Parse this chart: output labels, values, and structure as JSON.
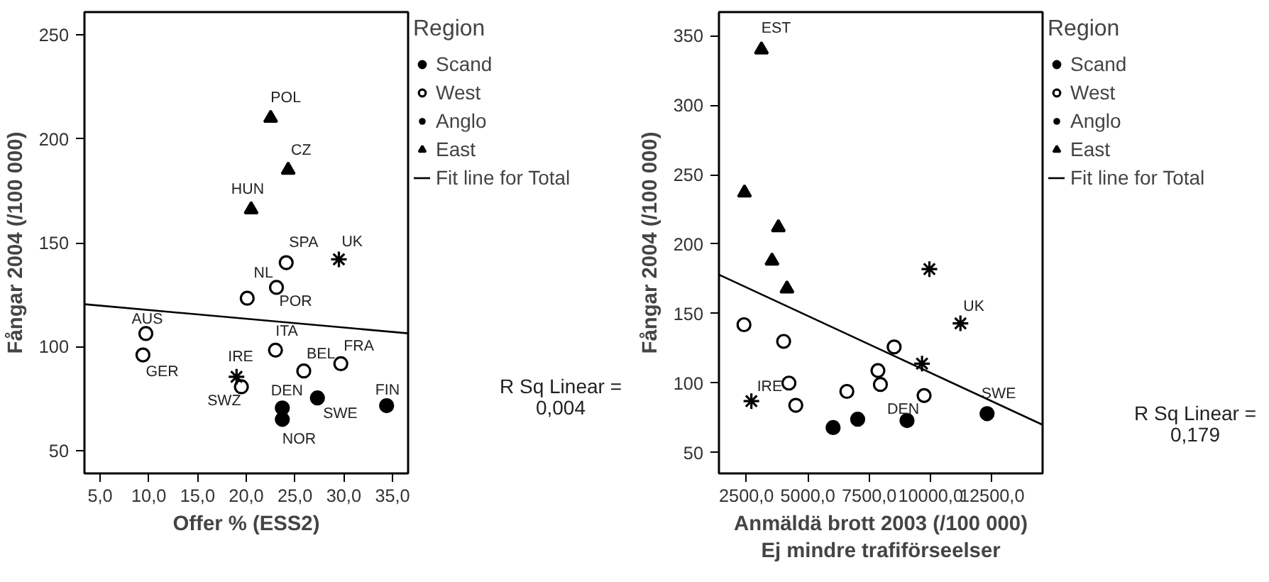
{
  "chart_data": [
    {
      "type": "scatter",
      "xlabel": "Offer % (ESS2)",
      "ylabel": "Fångar 2004 (/100 000)",
      "legend_title": "Region",
      "legend": "right",
      "xlim": [
        3.4,
        36.6
      ],
      "ylim": [
        39,
        261
      ],
      "xticks": [
        {
          "value": 5,
          "label": "5,0"
        },
        {
          "value": 10,
          "label": "10,0"
        },
        {
          "value": 15,
          "label": "15,0"
        },
        {
          "value": 20,
          "label": "20,0"
        },
        {
          "value": 25,
          "label": "25,0"
        },
        {
          "value": 30,
          "label": "30,0"
        },
        {
          "value": 35,
          "label": "35,0"
        }
      ],
      "yticks": [
        50,
        100,
        150,
        200,
        250
      ],
      "grid": false,
      "series": [
        {
          "name": "Scand",
          "color": "#000000",
          "marker": "circle",
          "x": [
            23.7,
            23.7,
            27.3,
            34.4
          ],
          "values": [
            70.5,
            65,
            75.3,
            71.6
          ]
        },
        {
          "name": "West",
          "color": "#ffffff",
          "marker": "circle",
          "x": [
            24.1,
            23.1,
            20.1,
            9.7,
            9.4,
            23.0,
            19.5,
            25.9,
            29.7
          ],
          "values": [
            140.4,
            128.5,
            123.3,
            106.3,
            96,
            98.3,
            80.7,
            88.3,
            91.8
          ]
        },
        {
          "name": "Anglo",
          "color": "#000000",
          "marker": "cross",
          "x": [
            29.5,
            19.0
          ],
          "values": [
            142,
            85.5
          ]
        },
        {
          "name": "East",
          "color": "#000000",
          "marker": "triangle",
          "x": [
            22.5,
            24.3,
            20.5
          ],
          "values": [
            210,
            185,
            166
          ]
        },
        {
          "name": "Fit line for Total",
          "type": "line",
          "color": "#000000",
          "x": [
            3.4,
            36.6
          ],
          "values": [
            120.4,
            106.4
          ]
        }
      ],
      "annotations": [
        {
          "text": "POL",
          "x": 22.5,
          "y": 210
        },
        {
          "text": "CZ",
          "x": 24.3,
          "y": 185
        },
        {
          "text": "HUN",
          "x": 20.5,
          "y": 166
        },
        {
          "text": "SPA",
          "x": 24.1,
          "y": 140.4
        },
        {
          "text": "UK",
          "x": 29.5,
          "y": 142
        },
        {
          "text": "NL",
          "x": 23.1,
          "y": 128.5
        },
        {
          "text": "POR",
          "x": 23.1,
          "y": 128.5
        },
        {
          "text": "AUS",
          "x": 9.7,
          "y": 106.3
        },
        {
          "text": "GER",
          "x": 9.4,
          "y": 96
        },
        {
          "text": "ITA",
          "x": 23.0,
          "y": 98.3
        },
        {
          "text": "IRE",
          "x": 19.0,
          "y": 85.5
        },
        {
          "text": "BEL",
          "x": 25.9,
          "y": 88.3
        },
        {
          "text": "FRA",
          "x": 29.7,
          "y": 91.8
        },
        {
          "text": "SWZ",
          "x": 19.5,
          "y": 80.7
        },
        {
          "text": "DEN",
          "x": 23.7,
          "y": 70.5
        },
        {
          "text": "SWE",
          "x": 27.3,
          "y": 75.3
        },
        {
          "text": "NOR",
          "x": 23.7,
          "y": 65
        },
        {
          "text": "FIN",
          "x": 34.4,
          "y": 71.6
        },
        "R Sq Linear = 0,004"
      ]
    },
    {
      "type": "scatter",
      "xlabel": "Anmäldä brott 2003 (/100 000) Ej mindre trafiförseelser",
      "ylabel": "Fångar 2004 (/100 000)",
      "legend_title": "Region",
      "legend": "right",
      "xlim": [
        1380,
        14560
      ],
      "ylim": [
        35,
        367
      ],
      "xticks": [
        {
          "value": 2500,
          "label": "2500,0"
        },
        {
          "value": 5000,
          "label": "5000,0"
        },
        {
          "value": 7500,
          "label": "7500,0"
        },
        {
          "value": 10000,
          "label": "10000,0"
        },
        {
          "value": 12500,
          "label": "12500,0"
        }
      ],
      "yticks": [
        50,
        100,
        150,
        200,
        250,
        300,
        350
      ],
      "grid": false,
      "series": [
        {
          "name": "Scand",
          "color": "#000000",
          "marker": "circle",
          "x": [
            6030,
            7030,
            9040,
            12300
          ],
          "values": [
            68,
            74,
            73,
            78
          ]
        },
        {
          "name": "West",
          "color": "#ffffff",
          "marker": "circle",
          "x": [
            2400,
            4015,
            4230,
            4510,
            6590,
            7855,
            7955,
            8515,
            9735
          ],
          "values": [
            142,
            130,
            100,
            84,
            94,
            109,
            99,
            126,
            91
          ]
        },
        {
          "name": "Anglo",
          "color": "#000000",
          "marker": "cross",
          "x": [
            2700,
            9650,
            9950,
            11215
          ],
          "values": [
            87,
            114,
            182,
            143
          ]
        },
        {
          "name": "East",
          "color": "#000000",
          "marker": "triangle",
          "x": [
            3110,
            2420,
            3800,
            3540,
            4150
          ],
          "values": [
            340,
            237,
            212,
            188,
            168
          ]
        },
        {
          "name": "Fit line for Total",
          "type": "line",
          "color": "#000000",
          "x": [
            1380,
            14560
          ],
          "values": [
            178,
            70
          ]
        }
      ],
      "annotations": [
        {
          "text": "EST",
          "x": 3110,
          "y": 340
        },
        {
          "text": "IRE",
          "x": 2700,
          "y": 87
        },
        {
          "text": "DEN",
          "x": 9735,
          "y": 91
        },
        {
          "text": "UK",
          "x": 11215,
          "y": 143
        },
        {
          "text": "SWE",
          "x": 12300,
          "y": 78
        },
        "R Sq Linear = 0,179"
      ]
    }
  ]
}
